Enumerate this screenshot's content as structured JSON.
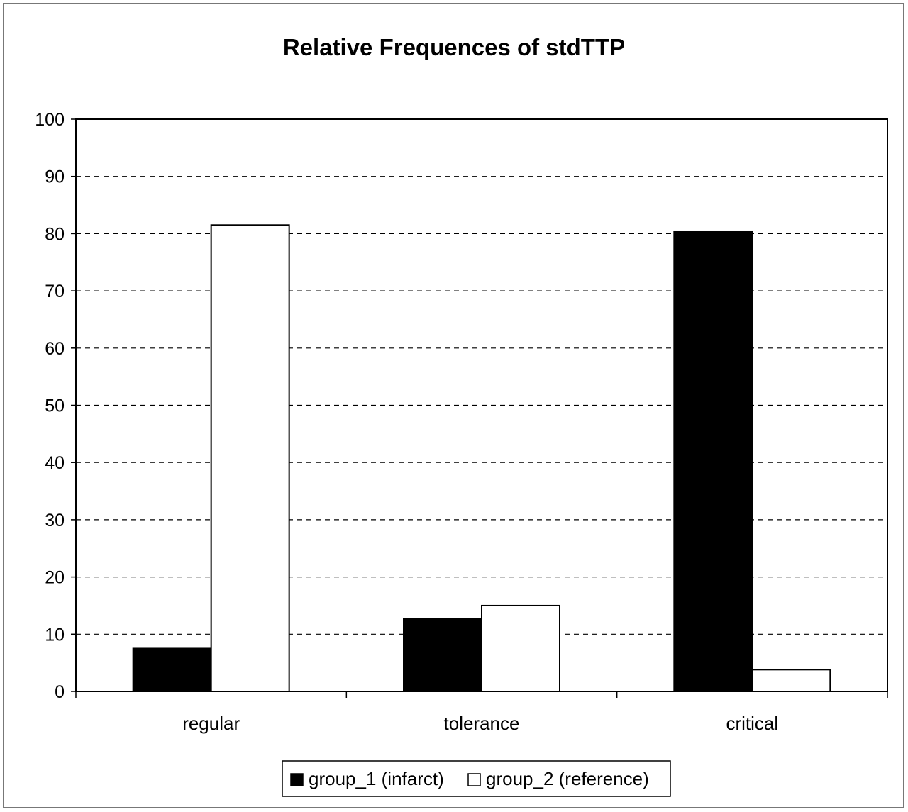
{
  "chart_data": {
    "type": "bar",
    "title": "Relative Frequences of stdTTP",
    "xlabel": "",
    "ylabel": "",
    "categories": [
      "regular",
      "tolerance",
      "critical"
    ],
    "series": [
      {
        "name": "group_1 (infarct)",
        "values": [
          7.5,
          12.7,
          80.3
        ],
        "color": "#000000"
      },
      {
        "name": "group_2 (reference)",
        "values": [
          81.5,
          15.0,
          3.8
        ],
        "color": "#ffffff"
      }
    ],
    "ylim": [
      0,
      100
    ],
    "yticks": [
      0,
      10,
      20,
      30,
      40,
      50,
      60,
      70,
      80,
      90,
      100
    ],
    "grid": "dashed horizontal",
    "legend_position": "bottom"
  }
}
